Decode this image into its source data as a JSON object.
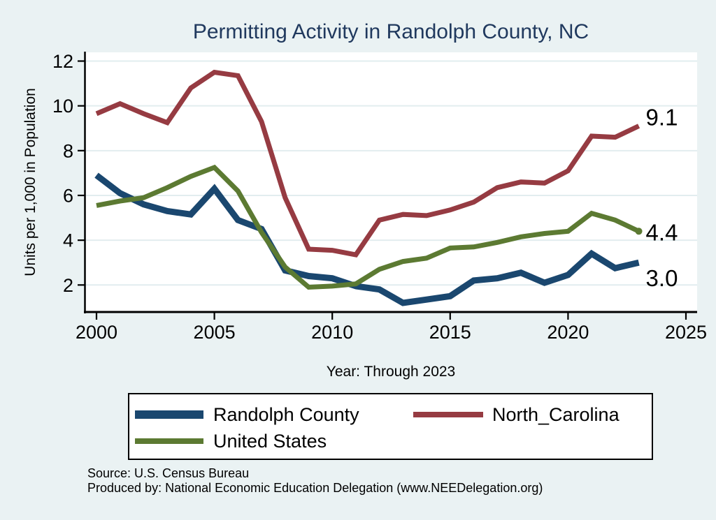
{
  "chart_data": {
    "type": "line",
    "title": "Permitting Activity in Randolph County, NC",
    "xlabel": "Year: Through 2023",
    "ylabel": "Units per 1,000 in Population",
    "x": [
      2000,
      2001,
      2002,
      2003,
      2004,
      2005,
      2006,
      2007,
      2008,
      2009,
      2010,
      2011,
      2012,
      2013,
      2014,
      2015,
      2016,
      2017,
      2018,
      2019,
      2020,
      2021,
      2022,
      2023
    ],
    "xticks": [
      2000,
      2005,
      2010,
      2015,
      2020,
      2025
    ],
    "yticks": [
      2,
      4,
      6,
      8,
      10,
      12
    ],
    "xlim": [
      1999.5,
      2025.3
    ],
    "ylim": [
      0.9,
      12.4
    ],
    "grid": "horizontal",
    "legend_position": "bottom",
    "series": [
      {
        "name": "Randolph County",
        "color": "#1a476f",
        "end_label": "3.0",
        "end_marker": false,
        "values": [
          6.9,
          6.1,
          5.6,
          5.3,
          5.15,
          6.3,
          4.9,
          4.5,
          2.65,
          2.4,
          2.3,
          1.95,
          1.8,
          1.2,
          1.35,
          1.5,
          2.2,
          2.3,
          2.55,
          2.1,
          2.45,
          3.4,
          2.75,
          3.0
        ]
      },
      {
        "name": "North_Carolina",
        "color": "#963b42",
        "end_label": "9.1",
        "end_marker": false,
        "values": [
          9.65,
          10.1,
          9.65,
          9.25,
          10.8,
          11.5,
          11.35,
          9.3,
          5.9,
          3.6,
          3.55,
          3.35,
          4.9,
          5.15,
          5.1,
          5.35,
          5.7,
          6.35,
          6.6,
          6.55,
          7.1,
          8.65,
          8.6,
          9.1
        ]
      },
      {
        "name": "United States",
        "color": "#5c7a32",
        "end_label": "4.4",
        "end_marker": true,
        "values": [
          5.55,
          5.75,
          5.9,
          6.35,
          6.85,
          7.25,
          6.2,
          4.35,
          2.8,
          1.9,
          1.95,
          2.05,
          2.7,
          3.05,
          3.2,
          3.65,
          3.7,
          3.9,
          4.15,
          4.3,
          4.4,
          5.2,
          4.9,
          4.4
        ]
      }
    ]
  },
  "footer": {
    "source": "Source: U.S. Census Bureau",
    "produced_by": "Produced by: National Economic Education Delegation (www.NEEDelegation.org)"
  },
  "colors": {
    "background": "#eaf2f3",
    "plot_background": "#ffffff",
    "gridline": "#e2edef",
    "axis": "#000000",
    "title": "#20395e"
  }
}
